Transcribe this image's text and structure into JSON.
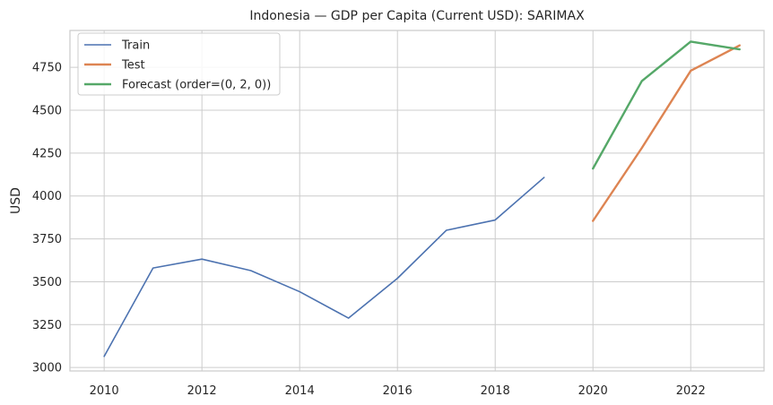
{
  "chart_data": {
    "type": "line",
    "title": "Indonesia — GDP per Capita (Current USD): SARIMAX",
    "xlabel": "",
    "ylabel": "USD",
    "xlim": [
      2009.3,
      2023.5
    ],
    "ylim": [
      2980,
      4965
    ],
    "xticks": [
      2010,
      2012,
      2014,
      2016,
      2018,
      2020,
      2022
    ],
    "yticks": [
      3000,
      3250,
      3500,
      3750,
      4000,
      4250,
      4500,
      4750
    ],
    "grid": true,
    "legend_position": "top-left",
    "series": [
      {
        "name": "Train",
        "color": "#4c72b0",
        "line_width": 1.6,
        "x": [
          2010,
          2011,
          2012,
          2013,
          2014,
          2015,
          2016,
          2017,
          2018,
          2019
        ],
        "y": [
          3065,
          3580,
          3632,
          3565,
          3442,
          3288,
          3520,
          3800,
          3860,
          4108
        ]
      },
      {
        "name": "Test",
        "color": "#dd8452",
        "line_width": 2.4,
        "x": [
          2020,
          2021,
          2022,
          2023
        ],
        "y": [
          3855,
          4280,
          4730,
          4878
        ]
      },
      {
        "name": "Forecast (order=(0, 2, 0))",
        "color": "#55a868",
        "line_width": 2.4,
        "x": [
          2020,
          2021,
          2022,
          2023
        ],
        "y": [
          4160,
          4670,
          4900,
          4855
        ]
      }
    ]
  }
}
